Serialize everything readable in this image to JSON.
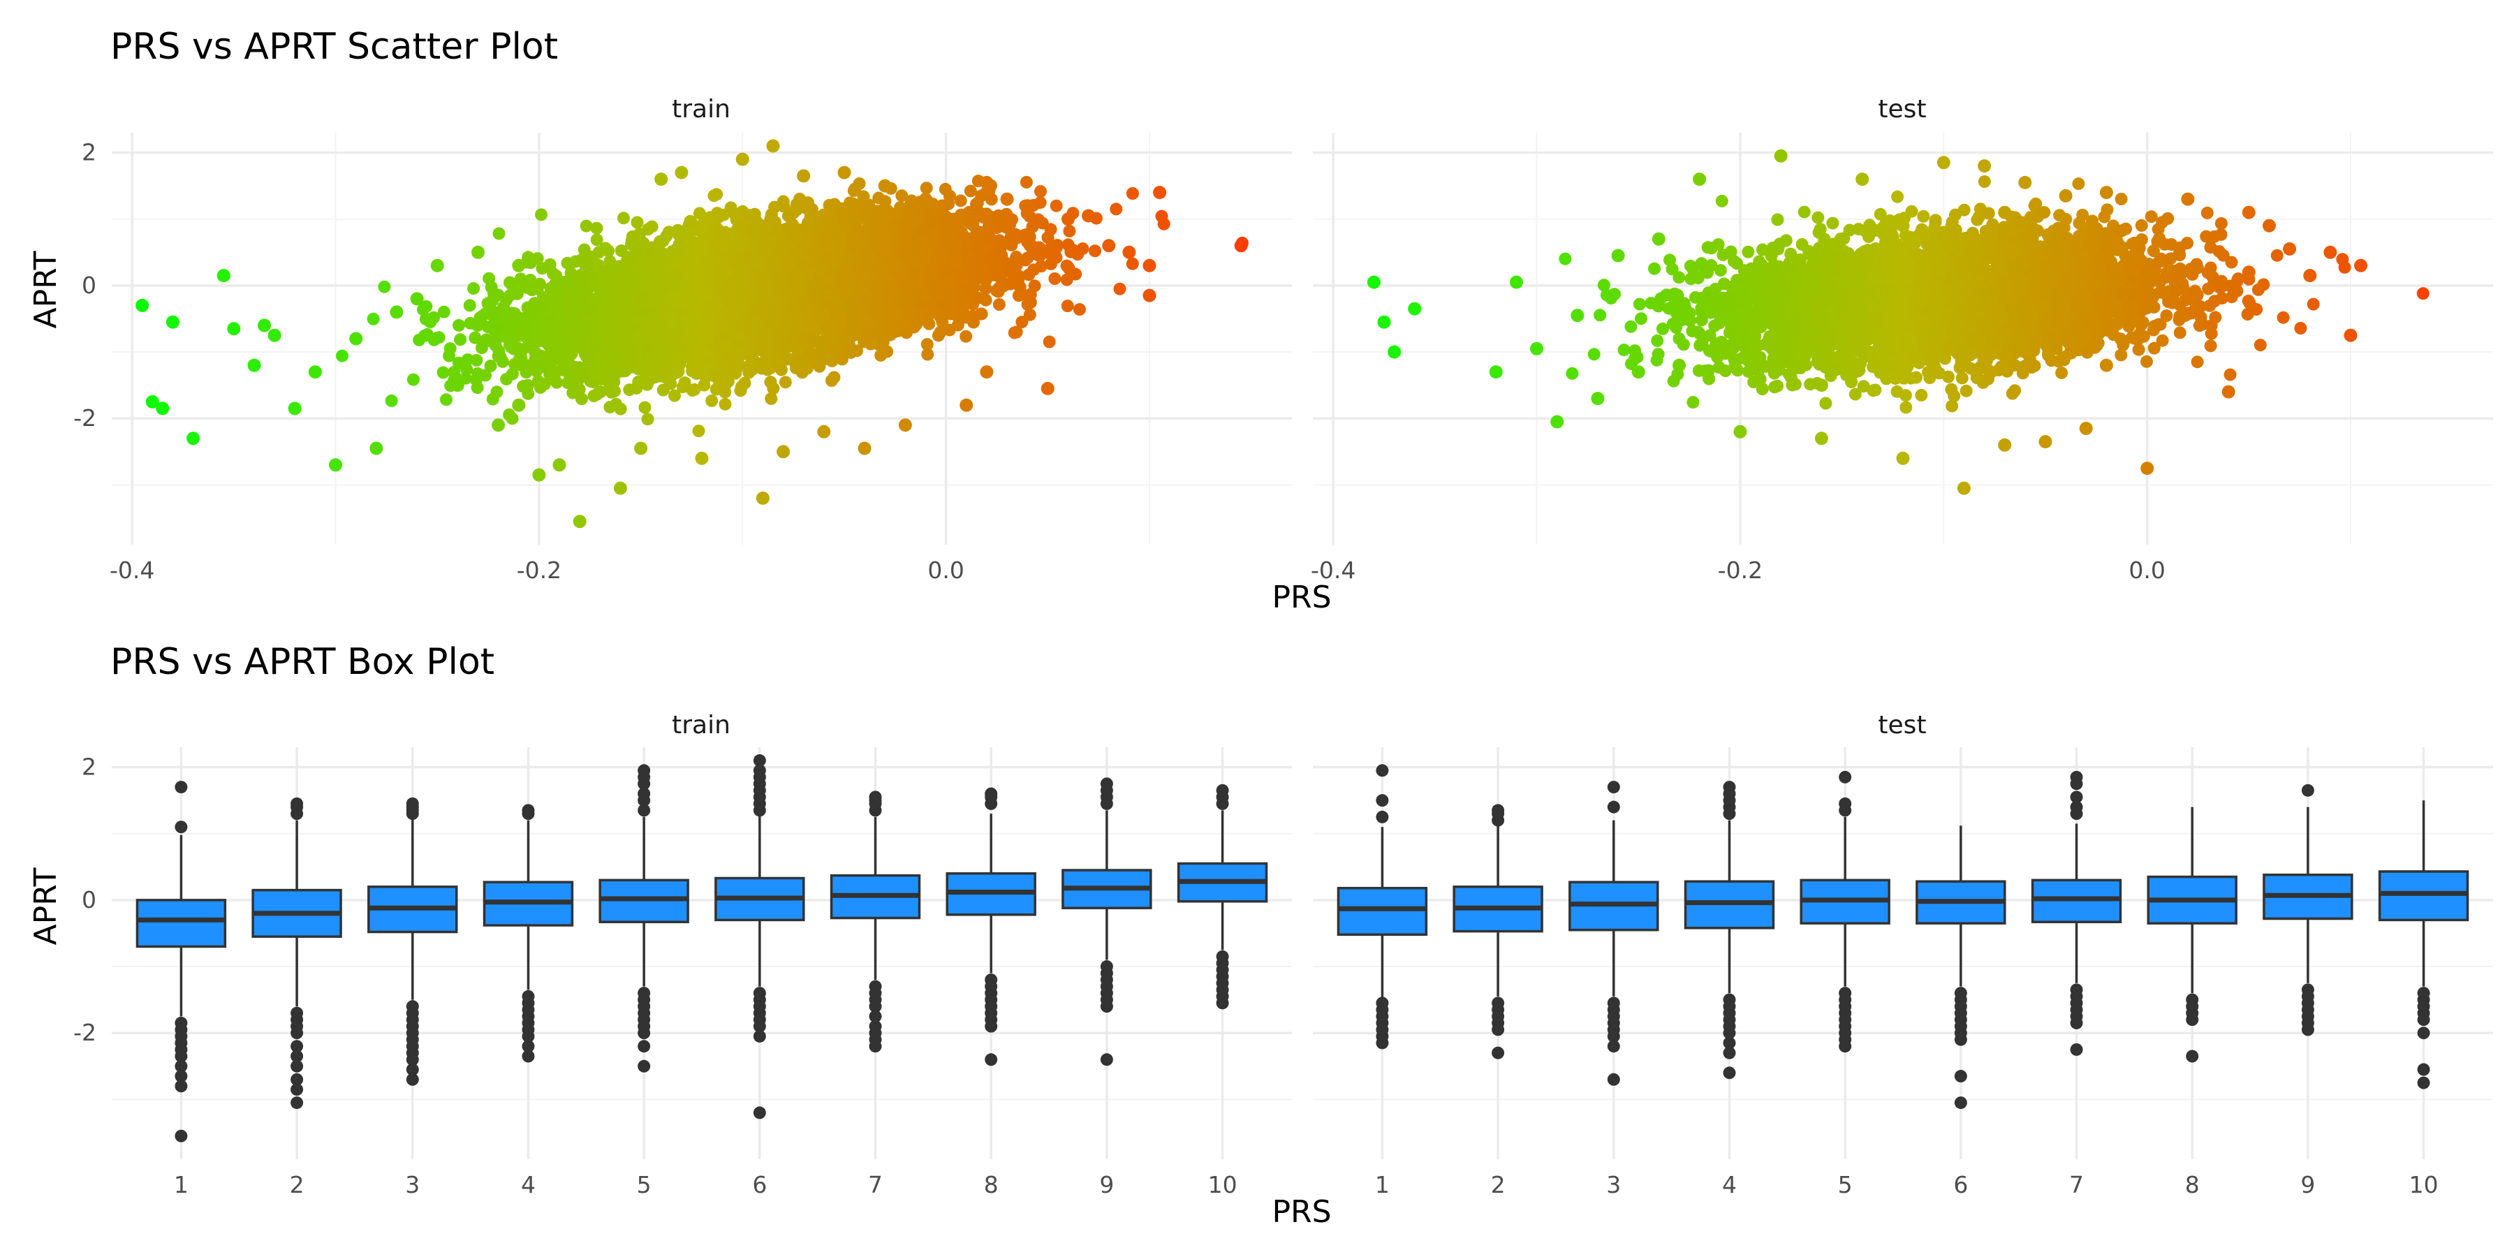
{
  "chart_data": [
    {
      "type": "scatter",
      "title": "PRS vs APRT Scatter Plot",
      "xlabel": "PRS",
      "ylabel": "APRT",
      "facets": [
        "train",
        "test"
      ],
      "xlim": [
        -0.41,
        0.17
      ],
      "ylim": [
        -3.9,
        2.3
      ],
      "xticks": [
        -0.4,
        -0.2,
        0.0
      ],
      "xtick_labels": [
        "-0.4",
        "-0.2",
        "0.0"
      ],
      "yticks": [
        -2,
        0,
        2
      ],
      "ytick_labels": [
        "-2",
        "0",
        "2"
      ],
      "grid": true,
      "color_gradient": {
        "low": "#00ff00",
        "mid": "#b8b800",
        "high": "#ff3300"
      },
      "point_color": "gradient by PRS",
      "bulk_cloud": {
        "train": {
          "x_range": [
            -0.2,
            0.05
          ],
          "center": [
            -0.09,
            -0.1
          ],
          "correlation": "positive"
        },
        "test": {
          "x_range": [
            -0.2,
            0.05
          ],
          "center": [
            -0.1,
            -0.2
          ],
          "correlation": "weak positive"
        }
      },
      "series": [
        {
          "name": "train",
          "x": [
            -0.2,
            -0.15,
            -0.1,
            -0.05,
            0.0,
            0.05,
            -0.12,
            -0.08,
            -0.03,
            -0.17,
            0.02,
            -0.21,
            -0.395,
            -0.39,
            -0.385,
            -0.38,
            -0.37,
            -0.355,
            -0.35,
            -0.34,
            -0.335,
            -0.33,
            -0.32,
            -0.31,
            -0.3,
            -0.29,
            -0.28,
            -0.27,
            -0.26,
            -0.25,
            -0.24,
            -0.23,
            -0.22,
            -0.21,
            -0.2,
            -0.19,
            -0.18,
            -0.16,
            -0.15,
            -0.14,
            -0.13,
            -0.12,
            -0.1,
            -0.09,
            -0.085,
            -0.08,
            -0.07,
            -0.06,
            -0.05,
            -0.04,
            -0.03,
            -0.02,
            -0.01,
            0.01,
            0.02,
            0.03,
            0.04,
            0.05,
            0.06,
            0.07,
            0.08,
            0.09,
            0.1,
            0.105,
            0.145,
            0.1
          ],
          "y": [
            -0.6,
            -0.4,
            -0.2,
            0.0,
            0.2,
            0.5,
            0.9,
            1.2,
            1.0,
            -1.6,
            -1.3,
            0.3,
            -0.3,
            -1.75,
            -1.85,
            -0.55,
            -2.3,
            0.15,
            -0.65,
            -1.2,
            -0.6,
            -0.75,
            -1.85,
            -1.3,
            -2.7,
            -0.8,
            -2.45,
            -0.4,
            -0.2,
            0.3,
            -1.5,
            0.5,
            -2.1,
            -1.8,
            -2.85,
            -2.7,
            -3.55,
            -3.05,
            -2.45,
            1.6,
            1.7,
            -2.6,
            1.9,
            -3.2,
            2.1,
            -2.5,
            1.65,
            -2.2,
            1.7,
            -2.45,
            1.5,
            -2.1,
            1.3,
            -1.8,
            1.55,
            1.3,
            1.2,
            -1.55,
            1.0,
            1.05,
            0.6,
            0.5,
            0.3,
            1.4,
            0.6,
            -0.15
          ]
        },
        {
          "name": "test",
          "x": [
            -0.2,
            -0.15,
            -0.1,
            -0.05,
            0.0,
            0.05,
            -0.12,
            -0.07,
            -0.16,
            -0.02,
            -0.38,
            -0.375,
            -0.37,
            -0.36,
            -0.32,
            -0.31,
            -0.3,
            -0.29,
            -0.28,
            -0.27,
            -0.26,
            -0.25,
            -0.24,
            -0.23,
            -0.22,
            -0.2,
            -0.18,
            -0.16,
            -0.14,
            -0.12,
            -0.1,
            -0.09,
            -0.08,
            -0.07,
            -0.06,
            -0.05,
            -0.04,
            -0.03,
            -0.02,
            0.0,
            0.02,
            0.04,
            0.05,
            0.06,
            0.07,
            0.08,
            0.09,
            0.1,
            0.105
          ],
          "y": [
            -0.4,
            -0.3,
            -0.2,
            -0.1,
            0.0,
            0.2,
            0.9,
            1.1,
            -1.5,
            -1.2,
            0.05,
            -0.55,
            -1.0,
            -0.35,
            -1.3,
            0.05,
            -0.95,
            -2.05,
            -0.45,
            -1.7,
            0.45,
            -1.3,
            0.7,
            -1.2,
            1.6,
            -2.2,
            1.95,
            -2.3,
            1.6,
            -2.6,
            1.85,
            -3.05,
            1.8,
            -2.4,
            1.55,
            -2.35,
            1.35,
            -2.15,
            1.4,
            -2.75,
            1.3,
            -1.6,
            1.1,
            0.9,
            0.55,
            0.15,
            0.5,
            -0.75,
            0.3
          ]
        }
      ]
    },
    {
      "type": "box",
      "title": "PRS vs APRT Box Plot",
      "xlabel": "PRS",
      "ylabel": "APRT",
      "facets": [
        "train",
        "test"
      ],
      "categories": [
        "1",
        "2",
        "3",
        "4",
        "5",
        "6",
        "7",
        "8",
        "9",
        "10"
      ],
      "ylim": [
        -3.9,
        2.3
      ],
      "yticks": [
        -2,
        0,
        2
      ],
      "ytick_labels": [
        "-2",
        "0",
        "2"
      ],
      "grid": true,
      "box_fill": "#1e90ff",
      "line_color": "#333333",
      "series": [
        {
          "name": "train",
          "boxes": [
            {
              "category": "1",
              "q1": -0.7,
              "median": -0.3,
              "q3": 0.0,
              "whisker_low": -1.75,
              "whisker_high": 0.98,
              "outliers": [
                -1.85,
                -1.95,
                -2.05,
                -2.15,
                -2.25,
                -2.35,
                -2.5,
                -2.65,
                -2.8,
                -3.55,
                1.1,
                1.7
              ]
            },
            {
              "category": "2",
              "q1": -0.55,
              "median": -0.2,
              "q3": 0.15,
              "whisker_low": -1.6,
              "whisker_high": 1.2,
              "outliers": [
                -1.7,
                -1.8,
                -1.9,
                -2.0,
                -2.2,
                -2.35,
                -2.5,
                -2.7,
                -2.85,
                -3.05,
                1.3,
                1.4,
                1.45
              ]
            },
            {
              "category": "3",
              "q1": -0.48,
              "median": -0.12,
              "q3": 0.2,
              "whisker_low": -1.5,
              "whisker_high": 1.22,
              "outliers": [
                -1.6,
                -1.7,
                -1.8,
                -1.9,
                -2.0,
                -2.1,
                -2.2,
                -2.3,
                -2.4,
                -2.55,
                -2.7,
                1.3,
                1.35,
                1.4,
                1.45
              ]
            },
            {
              "category": "4",
              "q1": -0.38,
              "median": -0.03,
              "q3": 0.27,
              "whisker_low": -1.35,
              "whisker_high": 1.2,
              "outliers": [
                -1.45,
                -1.55,
                -1.65,
                -1.75,
                -1.85,
                -1.95,
                -2.05,
                -2.2,
                -2.35,
                1.3,
                1.35
              ]
            },
            {
              "category": "5",
              "q1": -0.33,
              "median": 0.02,
              "q3": 0.3,
              "whisker_low": -1.3,
              "whisker_high": 1.25,
              "outliers": [
                -1.4,
                -1.5,
                -1.6,
                -1.7,
                -1.8,
                -1.9,
                -2.0,
                -2.2,
                -2.5,
                1.35,
                1.5,
                1.6,
                1.75,
                1.85,
                1.95
              ]
            },
            {
              "category": "6",
              "q1": -0.3,
              "median": 0.03,
              "q3": 0.33,
              "whisker_low": -1.3,
              "whisker_high": 1.3,
              "outliers": [
                -1.4,
                -1.5,
                -1.6,
                -1.7,
                -1.8,
                -1.9,
                -2.05,
                -3.2,
                1.35,
                1.45,
                1.55,
                1.65,
                1.75,
                1.85,
                1.95,
                2.1
              ]
            },
            {
              "category": "7",
              "q1": -0.27,
              "median": 0.07,
              "q3": 0.37,
              "whisker_low": -1.2,
              "whisker_high": 1.25,
              "outliers": [
                -1.3,
                -1.4,
                -1.5,
                -1.6,
                -1.75,
                -1.9,
                -2.0,
                -2.1,
                -2.2,
                1.35,
                1.45,
                1.5,
                1.55
              ]
            },
            {
              "category": "8",
              "q1": -0.22,
              "median": 0.12,
              "q3": 0.4,
              "whisker_low": -1.1,
              "whisker_high": 1.3,
              "outliers": [
                -1.2,
                -1.3,
                -1.4,
                -1.5,
                -1.6,
                -1.7,
                -1.8,
                -1.9,
                -2.4,
                1.45,
                1.55,
                1.6
              ]
            },
            {
              "category": "9",
              "q1": -0.12,
              "median": 0.18,
              "q3": 0.45,
              "whisker_low": -0.9,
              "whisker_high": 1.35,
              "outliers": [
                -1.0,
                -1.1,
                -1.2,
                -1.3,
                -1.4,
                -1.5,
                -1.6,
                -2.4,
                1.45,
                1.55,
                1.65,
                1.75
              ]
            },
            {
              "category": "10",
              "q1": -0.02,
              "median": 0.28,
              "q3": 0.55,
              "whisker_low": -0.75,
              "whisker_high": 1.35,
              "outliers": [
                -0.85,
                -0.95,
                -1.05,
                -1.15,
                -1.25,
                -1.35,
                -1.45,
                -1.55,
                1.45,
                1.55,
                1.65
              ]
            }
          ]
        },
        {
          "name": "test",
          "boxes": [
            {
              "category": "1",
              "q1": -0.52,
              "median": -0.13,
              "q3": 0.18,
              "whisker_low": -1.5,
              "whisker_high": 1.1,
              "outliers": [
                -1.55,
                -1.65,
                -1.75,
                -1.85,
                -1.95,
                -2.05,
                -2.15,
                1.25,
                1.5,
                1.95
              ]
            },
            {
              "category": "2",
              "q1": -0.47,
              "median": -0.12,
              "q3": 0.2,
              "whisker_low": -1.45,
              "whisker_high": 1.15,
              "outliers": [
                -1.55,
                -1.65,
                -1.75,
                -1.85,
                -1.95,
                -2.3,
                1.2,
                1.3,
                1.35
              ]
            },
            {
              "category": "3",
              "q1": -0.45,
              "median": -0.06,
              "q3": 0.27,
              "whisker_low": -1.45,
              "whisker_high": 1.2,
              "outliers": [
                -1.55,
                -1.65,
                -1.75,
                -1.85,
                -1.95,
                -2.05,
                -2.2,
                -2.7,
                1.4,
                1.7
              ]
            },
            {
              "category": "4",
              "q1": -0.42,
              "median": -0.04,
              "q3": 0.28,
              "whisker_low": -1.4,
              "whisker_high": 1.2,
              "outliers": [
                -1.5,
                -1.6,
                -1.7,
                -1.8,
                -1.9,
                -2.0,
                -2.15,
                -2.3,
                -2.6,
                1.3,
                1.4,
                1.5,
                1.6,
                1.7
              ]
            },
            {
              "category": "5",
              "q1": -0.35,
              "median": 0.0,
              "q3": 0.3,
              "whisker_low": -1.3,
              "whisker_high": 1.25,
              "outliers": [
                -1.4,
                -1.5,
                -1.6,
                -1.7,
                -1.8,
                -1.9,
                -2.0,
                -2.1,
                -2.2,
                1.35,
                1.45,
                1.85
              ]
            },
            {
              "category": "6",
              "q1": -0.35,
              "median": -0.02,
              "q3": 0.28,
              "whisker_low": -1.3,
              "whisker_high": 1.12,
              "outliers": [
                -1.4,
                -1.5,
                -1.6,
                -1.7,
                -1.8,
                -1.9,
                -2.0,
                -2.1,
                -2.65,
                -3.05
              ]
            },
            {
              "category": "7",
              "q1": -0.33,
              "median": 0.02,
              "q3": 0.3,
              "whisker_low": -1.25,
              "whisker_high": 1.15,
              "outliers": [
                -1.35,
                -1.45,
                -1.55,
                -1.65,
                -1.75,
                -1.85,
                -2.25,
                1.3,
                1.4,
                1.55,
                1.75,
                1.85
              ]
            },
            {
              "category": "8",
              "q1": -0.35,
              "median": 0.0,
              "q3": 0.35,
              "whisker_low": -1.4,
              "whisker_high": 1.4,
              "outliers": [
                -1.5,
                -1.6,
                -1.7,
                -1.8,
                -2.35
              ]
            },
            {
              "category": "9",
              "q1": -0.28,
              "median": 0.07,
              "q3": 0.38,
              "whisker_low": -1.25,
              "whisker_high": 1.4,
              "outliers": [
                -1.35,
                -1.45,
                -1.55,
                -1.65,
                -1.75,
                -1.85,
                -1.95,
                1.65
              ]
            },
            {
              "category": "10",
              "q1": -0.3,
              "median": 0.1,
              "q3": 0.43,
              "whisker_low": -1.3,
              "whisker_high": 1.5,
              "outliers": [
                -1.4,
                -1.5,
                -1.6,
                -1.7,
                -1.8,
                -2.0,
                -2.55,
                -2.75
              ]
            }
          ]
        }
      ]
    }
  ]
}
